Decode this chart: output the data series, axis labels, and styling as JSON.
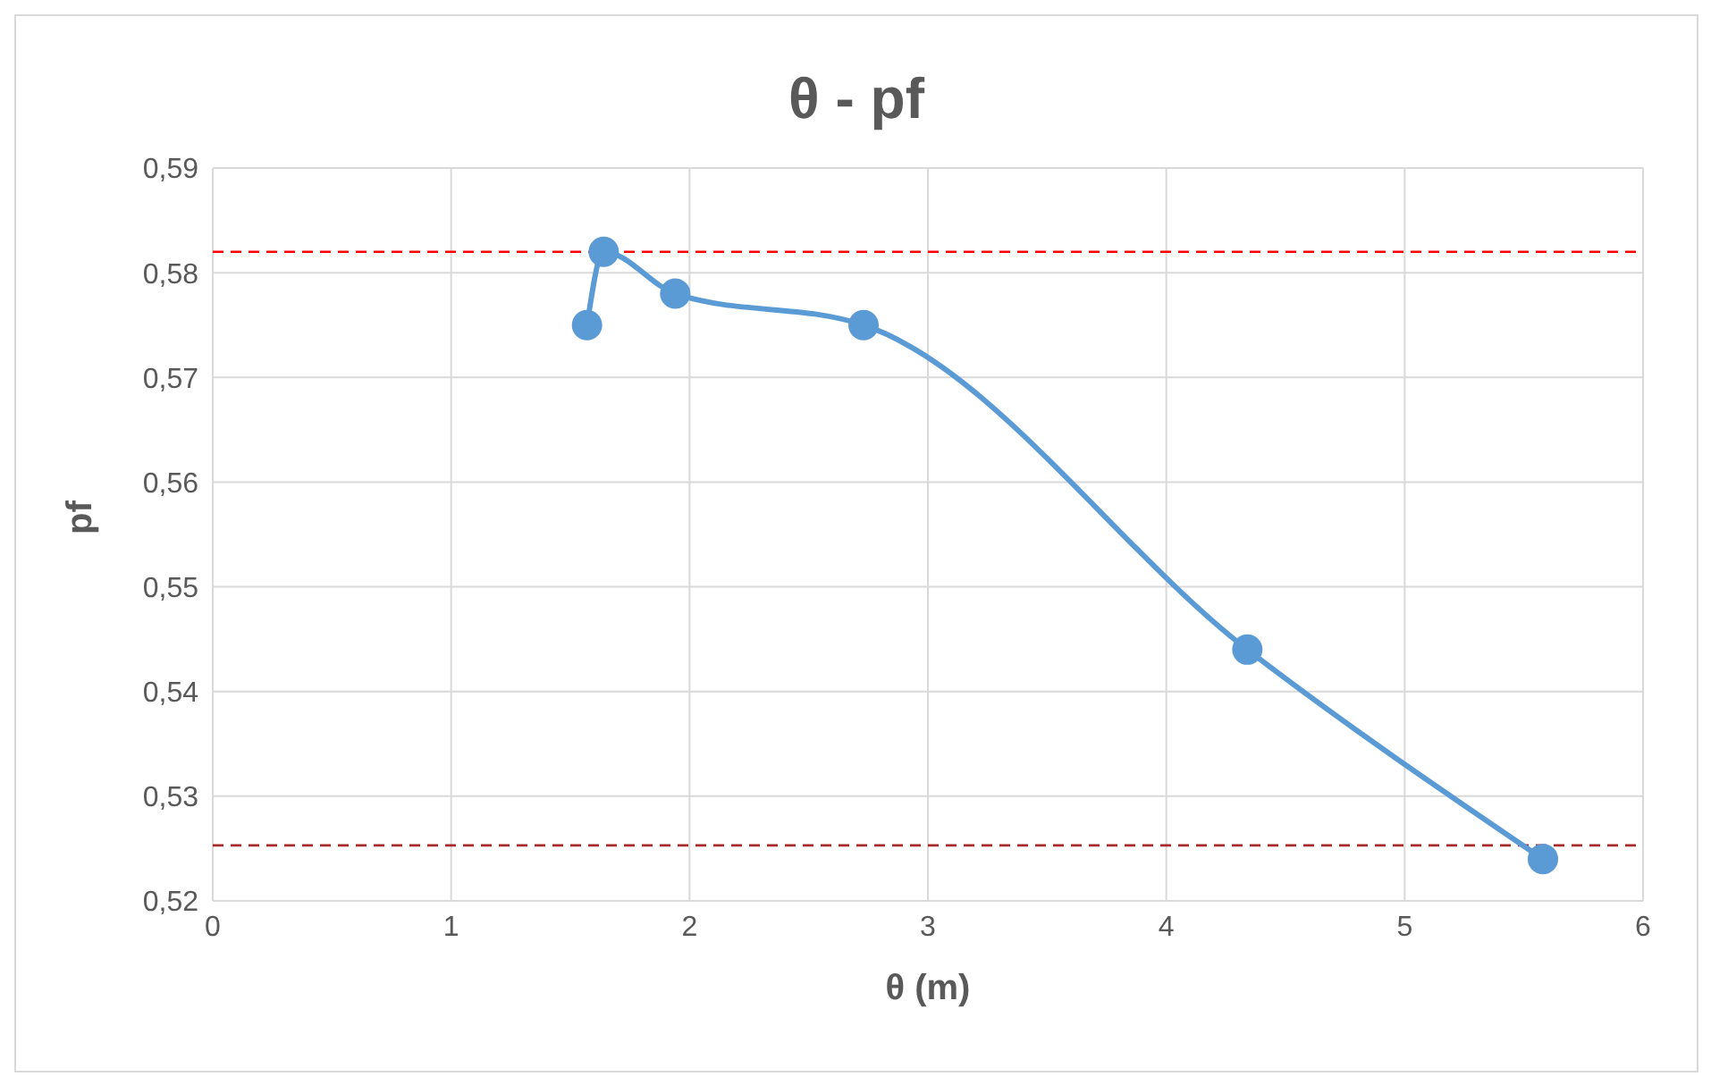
{
  "chart_data": {
    "type": "line",
    "title": "θ - pf",
    "xlabel": "θ (m)",
    "ylabel": "pf",
    "x": [
      1.57,
      1.64,
      1.94,
      2.73,
      4.34,
      5.58
    ],
    "series": [
      {
        "color": "#5b9bd5",
        "values": [
          0.575,
          0.582,
          0.578,
          0.575,
          0.544,
          0.524
        ]
      }
    ],
    "xlim": [
      0,
      6
    ],
    "xticks": [
      0,
      1,
      2,
      3,
      4,
      5,
      6
    ],
    "ylim": [
      0.52,
      0.59
    ],
    "yticks": [
      {
        "value": 0.52,
        "label": "0,52"
      },
      {
        "value": 0.53,
        "label": "0,53"
      },
      {
        "value": 0.54,
        "label": "0,54"
      },
      {
        "value": 0.55,
        "label": "0,55"
      },
      {
        "value": 0.56,
        "label": "0,56"
      },
      {
        "value": 0.57,
        "label": "0,57"
      },
      {
        "value": 0.58,
        "label": "0,58"
      },
      {
        "value": 0.59,
        "label": "0,59"
      }
    ],
    "ref_lines": [
      {
        "axis": "y",
        "value": 0.582,
        "color": "#ff0000",
        "line_style": "dashed"
      },
      {
        "axis": "y",
        "value": 0.5253,
        "color": "#a52a2a",
        "line_style": "dashed"
      }
    ],
    "grid": true,
    "marker": "circle",
    "line_style": "solid",
    "legend": false
  }
}
